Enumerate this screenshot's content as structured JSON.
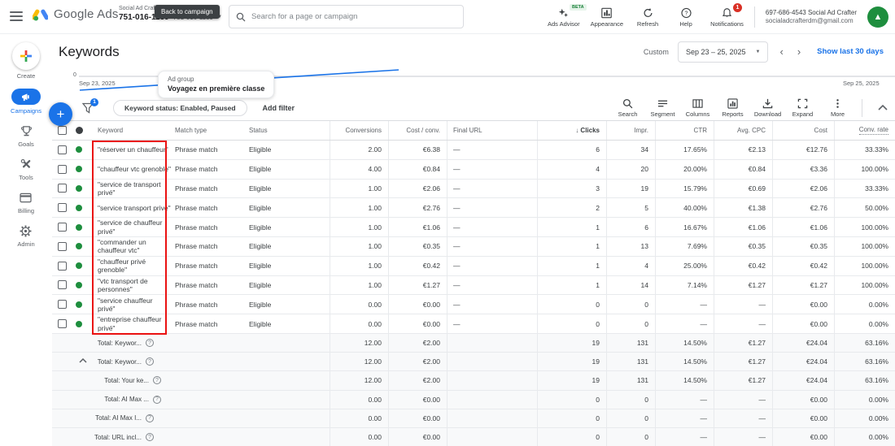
{
  "topbar": {
    "logo_text": "Google Ads",
    "account_name_small": "Social Ad Crafter",
    "account_id_bold": "751-016-1139",
    "account_id_small": "751-016-1139",
    "tooltip": "Back to campaign",
    "search_placeholder": "Search for a page or campaign",
    "actions": [
      {
        "label": "Ads Advisor",
        "badge": "BETA",
        "icon": "sparkle-icon"
      },
      {
        "label": "Appearance",
        "icon": "appearance-icon"
      },
      {
        "label": "Refresh",
        "icon": "refresh-icon"
      },
      {
        "label": "Help",
        "icon": "help-icon"
      },
      {
        "label": "Notifications",
        "icon": "bell-icon",
        "badge_count": "1"
      }
    ],
    "user": {
      "line1": "697-686-4543 Social Ad Crafter",
      "line2": "socialadcrafterdm@gmail.com",
      "avatar_glyph": "▲",
      "avatar_color": "#1e8e3e"
    }
  },
  "sidebar": {
    "items": [
      {
        "label": "Create",
        "icon": "plus-multicolor-icon"
      },
      {
        "label": "Campaigns",
        "icon": "megaphone-icon",
        "active": true
      },
      {
        "label": "Goals",
        "icon": "trophy-icon"
      },
      {
        "label": "Tools",
        "icon": "tools-icon"
      },
      {
        "label": "Billing",
        "icon": "billing-card-icon"
      },
      {
        "label": "Admin",
        "icon": "gear-icon"
      }
    ]
  },
  "page": {
    "title": "Keywords",
    "ad_group_label": "Ad group",
    "ad_group_name": "Voyagez en première classe",
    "date_mode": "Custom",
    "date_range": "Sep 23 – 25, 2025",
    "show_last_link": "Show last 30 days"
  },
  "chart": {
    "type": "line",
    "y_axis_zero_label": "0",
    "start_date": "Sep 23, 2025",
    "end_date": "Sep 25, 2025",
    "line_color": "#1a73e8",
    "note": "single rising blue series from Sep 23 baseline"
  },
  "filters": {
    "active_count": "1",
    "chip": "Keyword status: Enabled, Paused",
    "add_filter": "Add filter"
  },
  "toolbar": {
    "items": [
      {
        "label": "Search",
        "icon": "search-icon"
      },
      {
        "label": "Segment",
        "icon": "segment-icon"
      },
      {
        "label": "Columns",
        "icon": "columns-icon"
      },
      {
        "label": "Reports",
        "icon": "reports-icon"
      },
      {
        "label": "Download",
        "icon": "download-icon"
      },
      {
        "label": "Expand",
        "icon": "expand-icon"
      },
      {
        "label": "More",
        "icon": "more-dots-icon"
      }
    ]
  },
  "annotation": {
    "type": "highlight-box",
    "color": "#ea1111",
    "target": "keyword-column-rows"
  },
  "table": {
    "headers": {
      "keyword": "Keyword",
      "match_type": "Match type",
      "status": "Status",
      "conversions": "Conversions",
      "cost_per_conv": "Cost / conv.",
      "final_url": "Final URL",
      "clicks": "Clicks",
      "impr": "Impr.",
      "ctr": "CTR",
      "avg_cpc": "Avg. CPC",
      "cost": "Cost",
      "conv_rate": "Conv. rate",
      "sort_arrow": "↓"
    },
    "rows": [
      {
        "keyword": "\"réserver un chauffeur\"",
        "match_type": "Phrase match",
        "status": "Eligible",
        "conversions": "2.00",
        "cost_per_conv": "€6.38",
        "final_url": "—",
        "clicks": "6",
        "impr": "34",
        "ctr": "17.65%",
        "avg_cpc": "€2.13",
        "cost": "€12.76",
        "conv_rate": "33.33%"
      },
      {
        "keyword": "\"chauffeur vtc grenoble\"",
        "match_type": "Phrase match",
        "status": "Eligible",
        "conversions": "4.00",
        "cost_per_conv": "€0.84",
        "final_url": "—",
        "clicks": "4",
        "impr": "20",
        "ctr": "20.00%",
        "avg_cpc": "€0.84",
        "cost": "€3.36",
        "conv_rate": "100.00%"
      },
      {
        "keyword": "\"service de transport privé\"",
        "match_type": "Phrase match",
        "status": "Eligible",
        "conversions": "1.00",
        "cost_per_conv": "€2.06",
        "final_url": "—",
        "clicks": "3",
        "impr": "19",
        "ctr": "15.79%",
        "avg_cpc": "€0.69",
        "cost": "€2.06",
        "conv_rate": "33.33%"
      },
      {
        "keyword": "\"service transport privé\"",
        "match_type": "Phrase match",
        "status": "Eligible",
        "conversions": "1.00",
        "cost_per_conv": "€2.76",
        "final_url": "—",
        "clicks": "2",
        "impr": "5",
        "ctr": "40.00%",
        "avg_cpc": "€1.38",
        "cost": "€2.76",
        "conv_rate": "50.00%"
      },
      {
        "keyword": "\"service de chauffeur privé\"",
        "match_type": "Phrase match",
        "status": "Eligible",
        "conversions": "1.00",
        "cost_per_conv": "€1.06",
        "final_url": "—",
        "clicks": "1",
        "impr": "6",
        "ctr": "16.67%",
        "avg_cpc": "€1.06",
        "cost": "€1.06",
        "conv_rate": "100.00%"
      },
      {
        "keyword": "\"commander un chauffeur vtc\"",
        "match_type": "Phrase match",
        "status": "Eligible",
        "conversions": "1.00",
        "cost_per_conv": "€0.35",
        "final_url": "—",
        "clicks": "1",
        "impr": "13",
        "ctr": "7.69%",
        "avg_cpc": "€0.35",
        "cost": "€0.35",
        "conv_rate": "100.00%"
      },
      {
        "keyword": "\"chauffeur privé grenoble\"",
        "match_type": "Phrase match",
        "status": "Eligible",
        "conversions": "1.00",
        "cost_per_conv": "€0.42",
        "final_url": "—",
        "clicks": "1",
        "impr": "4",
        "ctr": "25.00%",
        "avg_cpc": "€0.42",
        "cost": "€0.42",
        "conv_rate": "100.00%"
      },
      {
        "keyword": "\"vtc transport de personnes\"",
        "match_type": "Phrase match",
        "status": "Eligible",
        "conversions": "1.00",
        "cost_per_conv": "€1.27",
        "final_url": "—",
        "clicks": "1",
        "impr": "14",
        "ctr": "7.14%",
        "avg_cpc": "€1.27",
        "cost": "€1.27",
        "conv_rate": "100.00%"
      },
      {
        "keyword": "\"service chauffeur privé\"",
        "match_type": "Phrase match",
        "status": "Eligible",
        "conversions": "0.00",
        "cost_per_conv": "€0.00",
        "final_url": "—",
        "clicks": "0",
        "impr": "0",
        "ctr": "—",
        "avg_cpc": "—",
        "cost": "€0.00",
        "conv_rate": "0.00%"
      },
      {
        "keyword": "\"entreprise chauffeur privé\"",
        "match_type": "Phrase match",
        "status": "Eligible",
        "conversions": "0.00",
        "cost_per_conv": "€0.00",
        "final_url": "—",
        "clicks": "0",
        "impr": "0",
        "ctr": "—",
        "avg_cpc": "—",
        "cost": "€0.00",
        "conv_rate": "0.00%"
      }
    ],
    "totals": [
      {
        "label": "Total: Keywor...",
        "expandable": false,
        "indent": false,
        "conversions": "12.00",
        "cost_per_conv": "€2.00",
        "final_url": "",
        "clicks": "19",
        "impr": "131",
        "ctr": "14.50%",
        "avg_cpc": "€1.27",
        "cost": "€24.04",
        "conv_rate": "63.16%"
      },
      {
        "label": "Total: Keywor...",
        "expandable": true,
        "indent": false,
        "conversions": "12.00",
        "cost_per_conv": "€2.00",
        "final_url": "",
        "clicks": "19",
        "impr": "131",
        "ctr": "14.50%",
        "avg_cpc": "€1.27",
        "cost": "€24.04",
        "conv_rate": "63.16%"
      },
      {
        "label": "Total: Your ke...",
        "expandable": false,
        "indent": true,
        "conversions": "12.00",
        "cost_per_conv": "€2.00",
        "final_url": "",
        "clicks": "19",
        "impr": "131",
        "ctr": "14.50%",
        "avg_cpc": "€1.27",
        "cost": "€24.04",
        "conv_rate": "63.16%"
      },
      {
        "label": "Total: AI Max ...",
        "expandable": false,
        "indent": true,
        "conversions": "0.00",
        "cost_per_conv": "€0.00",
        "final_url": "",
        "clicks": "0",
        "impr": "0",
        "ctr": "—",
        "avg_cpc": "—",
        "cost": "€0.00",
        "conv_rate": "0.00%"
      },
      {
        "label": "Total: AI Max I...",
        "expandable": false,
        "indent": false,
        "conversions": "0.00",
        "cost_per_conv": "€0.00",
        "final_url": "",
        "clicks": "0",
        "impr": "0",
        "ctr": "—",
        "avg_cpc": "—",
        "cost": "€0.00",
        "conv_rate": "0.00%"
      },
      {
        "label": "Total: URL incl...",
        "expandable": false,
        "indent": false,
        "conversions": "0.00",
        "cost_per_conv": "€0.00",
        "final_url": "",
        "clicks": "0",
        "impr": "0",
        "ctr": "—",
        "avg_cpc": "—",
        "cost": "€0.00",
        "conv_rate": "0.00%"
      }
    ]
  }
}
